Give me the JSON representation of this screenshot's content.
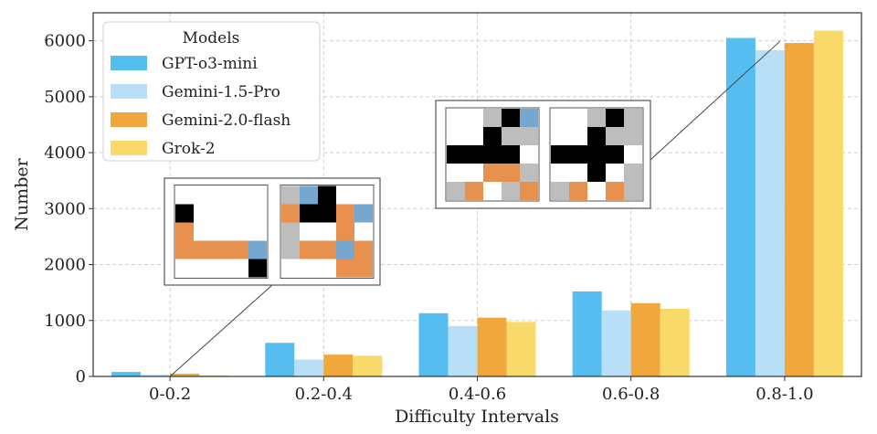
{
  "chart_data": {
    "type": "bar",
    "xlabel": "Difficulty Intervals",
    "ylabel": "Number",
    "categories": [
      "0-0.2",
      "0.2-0.4",
      "0.4-0.6",
      "0.6-0.8",
      "0.8-1.0"
    ],
    "ylim": [
      0,
      6500
    ],
    "yticks": [
      0,
      1000,
      2000,
      3000,
      4000,
      5000,
      6000
    ],
    "grid": true,
    "legend": {
      "title": "Models",
      "placement": "top-left"
    },
    "series": [
      {
        "name": "GPT-o3-mini",
        "color": "#56bdf0",
        "values": [
          80,
          600,
          1130,
          1520,
          6050
        ]
      },
      {
        "name": "Gemini-1.5-Pro",
        "color": "#b8dff8",
        "values": [
          30,
          300,
          900,
          1180,
          5830
        ]
      },
      {
        "name": "Gemini-2.0-flash",
        "color": "#f0a83c",
        "values": [
          50,
          390,
          1050,
          1310,
          5960
        ]
      },
      {
        "name": "Grok-2",
        "color": "#f8d96a",
        "values": [
          20,
          370,
          975,
          1210,
          6180
        ]
      }
    ],
    "insets": [
      {
        "anchor_category": 0,
        "grids": [
          [
            "WWWWW",
            "BWWWW",
            "OWWWW",
            "OOOOL",
            "WWWWB"
          ],
          [
            "GLBWW",
            "OBBOL",
            "GWWOW",
            "GOOLO",
            "WWWOO"
          ]
        ]
      },
      {
        "anchor_category": 4,
        "grids": [
          [
            "WWGBL",
            "WWBGG",
            "BBBBW",
            "WWOOG",
            "GOWGO"
          ],
          [
            "WWGBG",
            "WWBGG",
            "BBBBW",
            "WWBWG",
            "GOWOG"
          ]
        ]
      }
    ],
    "cell_colors": {
      "W": "#ffffff",
      "B": "#000000",
      "O": "#e8914f",
      "G": "#bdbdbd",
      "L": "#76a7cf"
    }
  }
}
